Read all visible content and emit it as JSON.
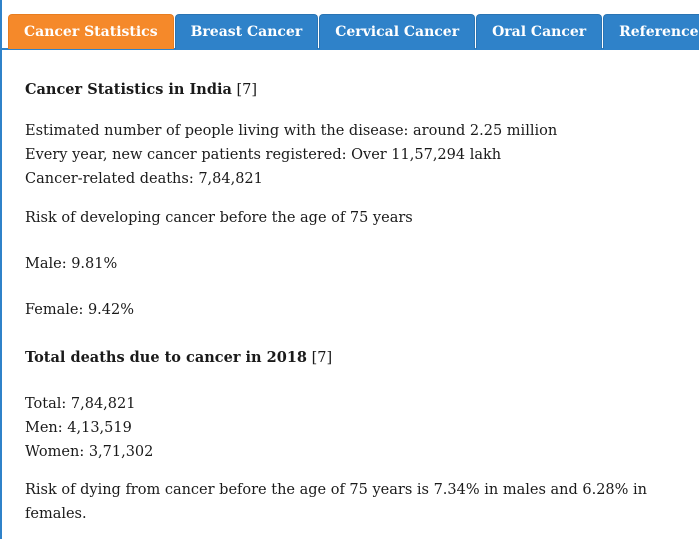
{
  "tabs": [
    {
      "label": "Cancer Statistics",
      "active": true
    },
    {
      "label": "Breast Cancer",
      "active": false
    },
    {
      "label": "Cervical Cancer",
      "active": false
    },
    {
      "label": "Oral Cancer",
      "active": false
    },
    {
      "label": "References",
      "active": false
    }
  ],
  "content": {
    "heading1": "Cancer Statistics in India",
    "heading1_ref": "[7]",
    "line_living": "Estimated number of people living with the disease: around 2.25 million",
    "line_new_patients": "Every year, new cancer patients registered: Over 11,57,294 lakh",
    "line_deaths": "Cancer-related deaths: 7,84,821",
    "risk_intro": "Risk of developing cancer before the age of 75 years",
    "risk_male": "Male: 9.81%",
    "risk_female": "Female: 9.42%",
    "heading2": "Total deaths due to cancer in 2018",
    "heading2_ref": "[7]",
    "deaths_total": "Total: 7,84,821",
    "deaths_men": "Men: 4,13,519",
    "deaths_women": "Women: 3,71,302",
    "risk_dying": "Risk of dying from cancer before the age of 75 years is 7.34% in males and 6.28% in females."
  },
  "colors": {
    "tab_blue": "#2f82c9",
    "tab_active_orange": "#f5892a"
  }
}
